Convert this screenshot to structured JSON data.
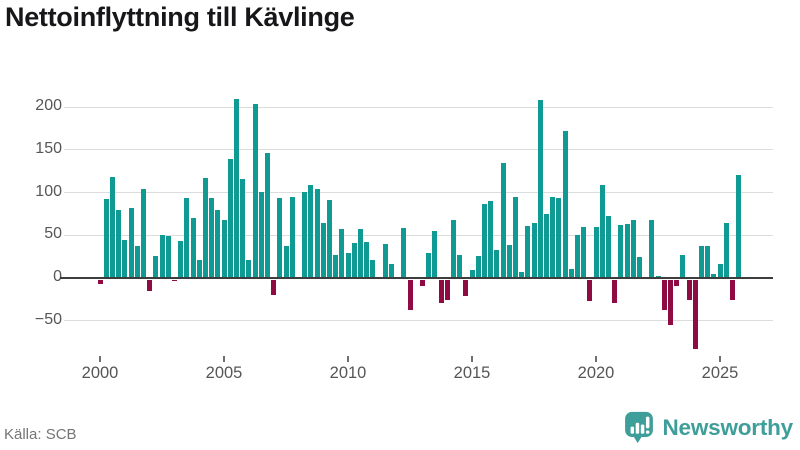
{
  "title": "Nettoinflyttning till Kävlinge",
  "source": {
    "text": "Källa: SCB"
  },
  "branding": {
    "name": "Newsworthy",
    "color": "#3e9e99"
  },
  "colors": {
    "bar_positive": "#0f9b94",
    "bar_negative": "#8e0b44",
    "gridline": "#dcdcdc",
    "zero_line": "#3d3d3d",
    "axis_text": "#565656"
  },
  "chart_data": {
    "type": "bar",
    "title": "Nettoinflyttning till Kävlinge",
    "xlabel": "",
    "ylabel": "",
    "frequency": "quarterly",
    "start_year": 2000,
    "end": "2025 Q4",
    "grid": true,
    "ylim": [
      -90,
      215
    ],
    "positive_color": "#0f9b94",
    "negative_color": "#8e0b44",
    "y_ticks": [
      {
        "value": 200,
        "label": "200"
      },
      {
        "value": 150,
        "label": "150"
      },
      {
        "value": 100,
        "label": "100"
      },
      {
        "value": 50,
        "label": "50"
      },
      {
        "value": 0,
        "label": "0"
      },
      {
        "value": -50,
        "label": "−50"
      }
    ],
    "x_ticks": [
      {
        "year": 2000,
        "label": "2000"
      },
      {
        "year": 2005,
        "label": "2005"
      },
      {
        "year": 2010,
        "label": "2010"
      },
      {
        "year": 2015,
        "label": "2015"
      },
      {
        "year": 2020,
        "label": "2020"
      },
      {
        "year": 2025,
        "label": "2025"
      }
    ],
    "series": [
      {
        "name": "Nettoinflyttning",
        "values": [
          -5,
          92,
          118,
          79,
          44,
          82,
          38,
          104,
          -14,
          26,
          50,
          49,
          -2,
          43,
          94,
          70,
          21,
          117,
          94,
          79,
          68,
          139,
          209,
          116,
          21,
          204,
          101,
          146,
          -18,
          93,
          37,
          95,
          0,
          101,
          109,
          104,
          64,
          91,
          27,
          57,
          29,
          41,
          57,
          42,
          21,
          0,
          40,
          16,
          0,
          58,
          -36,
          0,
          -8,
          29,
          55,
          -27,
          -24,
          68,
          27,
          -19,
          9,
          26,
          87,
          90,
          33,
          134,
          39,
          95,
          7,
          61,
          64,
          208,
          75,
          95,
          94,
          172,
          10,
          50,
          60,
          -25,
          60,
          109,
          72,
          -28,
          62,
          63,
          68,
          25,
          0,
          68,
          2,
          -36,
          -53,
          -8,
          27,
          -24,
          -81,
          38,
          38,
          5,
          16,
          64,
          -24,
          121
        ]
      }
    ]
  }
}
